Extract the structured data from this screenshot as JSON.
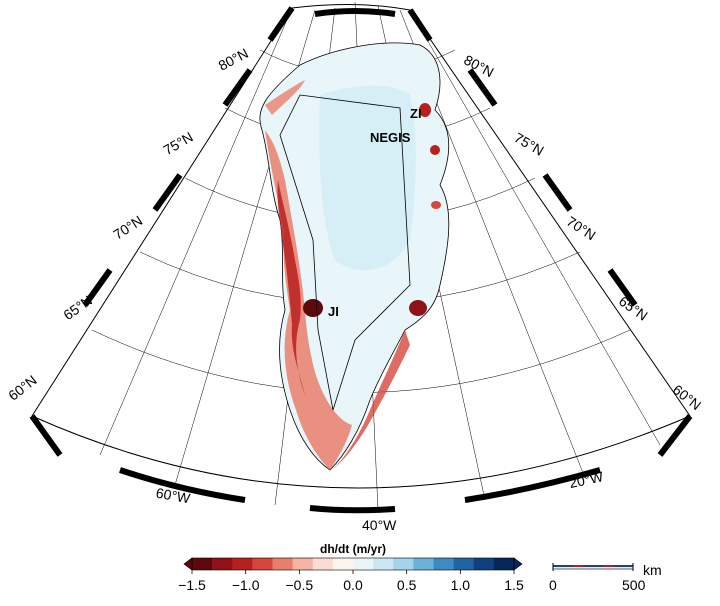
{
  "map": {
    "latitude_labels": [
      "60°N",
      "65°N",
      "70°N",
      "75°N",
      "80°N"
    ],
    "longitude_labels": [
      "60°W",
      "40°W",
      "20°W"
    ],
    "site_labels": [
      "ZI",
      "NEGIS",
      "JI"
    ]
  },
  "colorbar": {
    "title": "dh/dt (m/yr)",
    "tick_labels": [
      "−1.5",
      "−1.0",
      "−0.5",
      "0.0",
      "0.5",
      "1.0",
      "1.5"
    ],
    "colors": [
      "#5e0a0d",
      "#8e1217",
      "#b8201f",
      "#d6473b",
      "#ea7e6c",
      "#f6b4a4",
      "#fbdcd3",
      "#fdf3ef",
      "#e8f5f9",
      "#cbe8f2",
      "#a4d4ea",
      "#6ab2d8",
      "#3a8cc2",
      "#1f64a4",
      "#0f4181",
      "#06275a"
    ]
  },
  "scalebar": {
    "unit": "km",
    "start_label": "0",
    "end_label": "500"
  }
}
